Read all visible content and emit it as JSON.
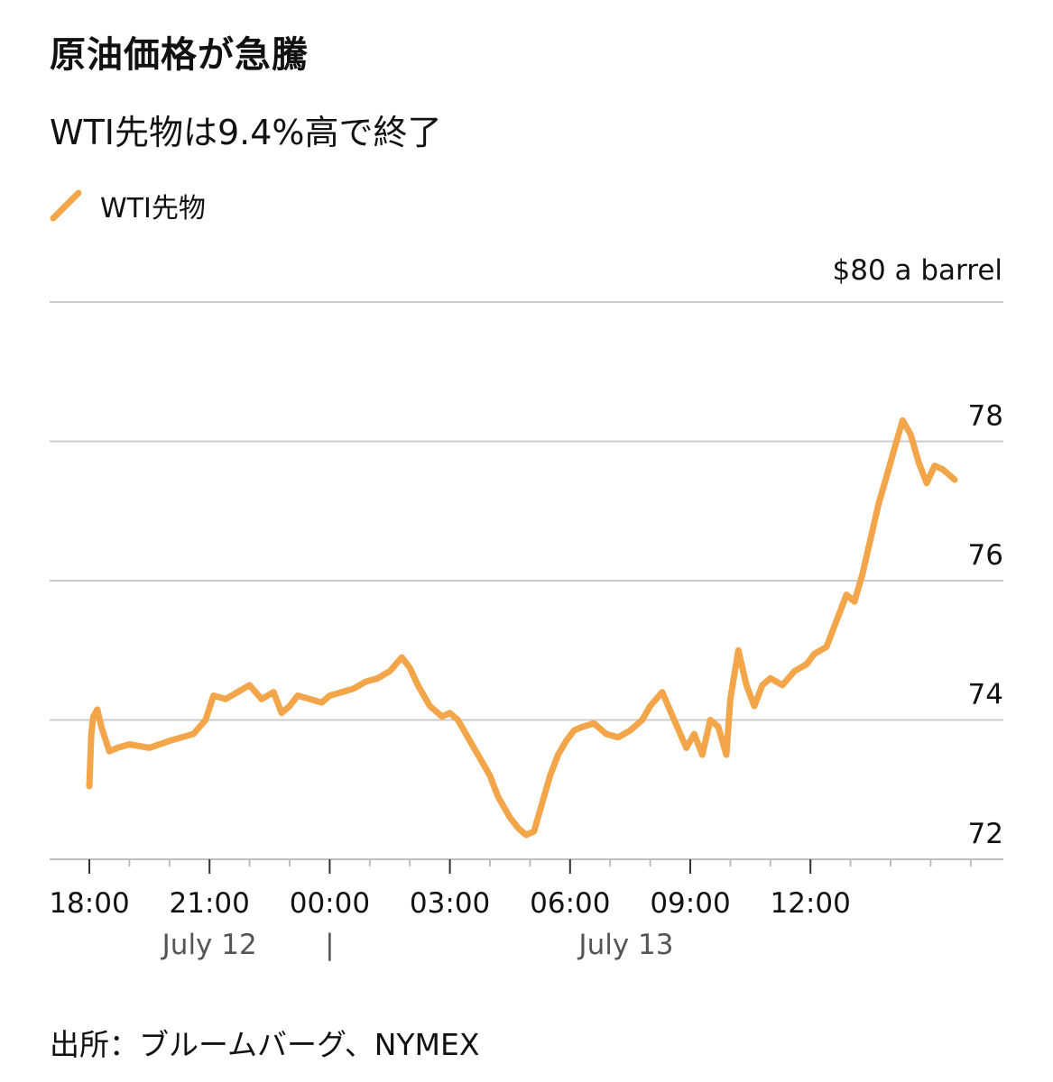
{
  "title": "原油価格が急騰",
  "subtitle": "WTI先物は9.4%高で終了",
  "source": "出所：ブルームバーグ、NYMEX",
  "colors": {
    "line": "#f3a54a",
    "grid": "#cccccc",
    "axis": "#bdbdbd",
    "text": "#111111",
    "date_text": "#555555"
  },
  "chart_data": {
    "type": "line",
    "unit_label": "$80 a barrel",
    "ylim": [
      72,
      80
    ],
    "y_ticks": [
      78,
      76,
      74,
      72
    ],
    "x_tick_labels": [
      "18:00",
      "21:00",
      "00:00",
      "03:00",
      "06:00",
      "09:00",
      "12:00"
    ],
    "x_tick_hours": [
      0,
      3,
      6,
      9,
      12,
      15,
      18
    ],
    "xlim_hours": [
      -1,
      23
    ],
    "date_labels": [
      {
        "text": "July 12",
        "hour": 3
      },
      {
        "text": "|",
        "hour": 6
      },
      {
        "text": "July 13",
        "hour": 13.4
      }
    ],
    "series": [
      {
        "name": "WTI先物",
        "x_hours": [
          0,
          0.05,
          0.1,
          0.2,
          0.3,
          0.5,
          0.7,
          1,
          1.5,
          2,
          2.3,
          2.6,
          2.9,
          3.1,
          3.4,
          3.7,
          4,
          4.3,
          4.6,
          4.8,
          5,
          5.2,
          5.5,
          5.8,
          6,
          6.3,
          6.6,
          6.9,
          7.2,
          7.5,
          7.8,
          8.0,
          8.2,
          8.5,
          8.8,
          9.0,
          9.2,
          9.5,
          9.8,
          10,
          10.2,
          10.5,
          10.7,
          10.9,
          11.1,
          11.3,
          11.5,
          11.7,
          11.9,
          12.1,
          12.3,
          12.6,
          12.9,
          13.2,
          13.5,
          13.8,
          14.0,
          14.3,
          14.6,
          14.9,
          15.1,
          15.3,
          15.5,
          15.7,
          15.9,
          16.0,
          16.2,
          16.4,
          16.6,
          16.8,
          17.0,
          17.3,
          17.6,
          17.9,
          18.1,
          18.4,
          18.7,
          18.9,
          19.1,
          19.3,
          19.5,
          19.7,
          19.9,
          20.1,
          20.3,
          20.5,
          20.7,
          20.9,
          21.1,
          21.3,
          21.5,
          21.6
        ],
        "values": [
          73.05,
          73.8,
          74.05,
          74.15,
          73.9,
          73.55,
          73.6,
          73.65,
          73.6,
          73.7,
          73.75,
          73.8,
          74.0,
          74.35,
          74.3,
          74.4,
          74.5,
          74.3,
          74.4,
          74.1,
          74.2,
          74.35,
          74.3,
          74.25,
          74.35,
          74.4,
          74.45,
          74.55,
          74.6,
          74.7,
          74.9,
          74.75,
          74.5,
          74.2,
          74.05,
          74.1,
          74.0,
          73.7,
          73.4,
          73.2,
          72.9,
          72.6,
          72.45,
          72.35,
          72.4,
          72.8,
          73.2,
          73.5,
          73.7,
          73.85,
          73.9,
          73.95,
          73.8,
          73.75,
          73.85,
          74.0,
          74.2,
          74.4,
          74.0,
          73.6,
          73.8,
          73.5,
          74.0,
          73.9,
          73.5,
          74.3,
          75.0,
          74.5,
          74.2,
          74.5,
          74.6,
          74.5,
          74.7,
          74.8,
          74.95,
          75.05,
          75.5,
          75.8,
          75.7,
          76.1,
          76.6,
          77.1,
          77.5,
          77.9,
          78.3,
          78.1,
          77.7,
          77.4,
          77.65,
          77.6,
          77.5,
          77.45
        ]
      }
    ]
  }
}
